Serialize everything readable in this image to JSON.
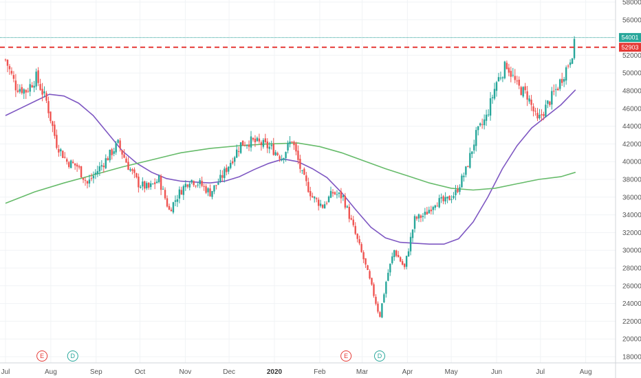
{
  "chart_data": {
    "type": "candlestick",
    "y_axis": {
      "min": 18000,
      "max": 58000,
      "ticks": [
        18000,
        20000,
        22000,
        24000,
        26000,
        28000,
        30000,
        32000,
        34000,
        36000,
        38000,
        40000,
        42000,
        44000,
        46000,
        48000,
        50000,
        52000,
        54000,
        56000,
        58000
      ],
      "side": "right"
    },
    "x_axis": {
      "labels": [
        {
          "text": "Jul",
          "day": 0,
          "bold": false
        },
        {
          "text": "Aug",
          "day": 31,
          "bold": false
        },
        {
          "text": "Sep",
          "day": 62,
          "bold": false
        },
        {
          "text": "Oct",
          "day": 92,
          "bold": false
        },
        {
          "text": "Nov",
          "day": 123,
          "bold": false
        },
        {
          "text": "Dec",
          "day": 153,
          "bold": false
        },
        {
          "text": "2020",
          "day": 184,
          "bold": true
        },
        {
          "text": "Feb",
          "day": 215,
          "bold": false
        },
        {
          "text": "Mar",
          "day": 244,
          "bold": false
        },
        {
          "text": "Apr",
          "day": 275,
          "bold": false
        },
        {
          "text": "May",
          "day": 305,
          "bold": false
        },
        {
          "text": "Jun",
          "day": 336,
          "bold": false
        },
        {
          "text": "Jul",
          "day": 366,
          "bold": false
        },
        {
          "text": "Aug",
          "day": 397,
          "bold": false
        }
      ],
      "day_range": [
        0,
        427
      ]
    },
    "price_levels": {
      "last_price": {
        "value": 54001,
        "label": "54001",
        "color": "#26a69a"
      },
      "resistance": {
        "value": 52903,
        "label": "52903",
        "color": "#e53935"
      }
    },
    "weekly_anchors": [
      [
        0,
        51500
      ],
      [
        7,
        48500
      ],
      [
        14,
        48000
      ],
      [
        21,
        49500
      ],
      [
        28,
        46800
      ],
      [
        35,
        42000
      ],
      [
        42,
        40000
      ],
      [
        49,
        39500
      ],
      [
        56,
        37500
      ],
      [
        63,
        39000
      ],
      [
        70,
        40500
      ],
      [
        77,
        42000
      ],
      [
        84,
        39500
      ],
      [
        91,
        37500
      ],
      [
        98,
        37000
      ],
      [
        105,
        38000
      ],
      [
        112,
        34500
      ],
      [
        119,
        36500
      ],
      [
        126,
        38000
      ],
      [
        133,
        37500
      ],
      [
        140,
        36500
      ],
      [
        147,
        38000
      ],
      [
        154,
        40000
      ],
      [
        161,
        42000
      ],
      [
        168,
        42300
      ],
      [
        175,
        42000
      ],
      [
        182,
        41500
      ],
      [
        189,
        40500
      ],
      [
        196,
        42500
      ],
      [
        203,
        38500
      ],
      [
        210,
        36000
      ],
      [
        217,
        35000
      ],
      [
        224,
        36500
      ],
      [
        231,
        36000
      ],
      [
        238,
        32500
      ],
      [
        245,
        29000
      ],
      [
        252,
        25000
      ],
      [
        256,
        22500
      ],
      [
        261,
        27000
      ],
      [
        266,
        30000
      ],
      [
        273,
        28000
      ],
      [
        280,
        33500
      ],
      [
        287,
        34000
      ],
      [
        294,
        35500
      ],
      [
        301,
        35500
      ],
      [
        308,
        36500
      ],
      [
        315,
        39000
      ],
      [
        322,
        43000
      ],
      [
        329,
        45000
      ],
      [
        336,
        49000
      ],
      [
        343,
        51000
      ],
      [
        350,
        48500
      ],
      [
        357,
        47500
      ],
      [
        364,
        44500
      ],
      [
        371,
        46500
      ],
      [
        378,
        48500
      ],
      [
        385,
        51000
      ],
      [
        390,
        53500
      ]
    ],
    "series": [
      {
        "name": "",
        "color": "#7e57c2",
        "points": [
          [
            0,
            45200
          ],
          [
            10,
            46000
          ],
          [
            20,
            46800
          ],
          [
            30,
            47600
          ],
          [
            40,
            47400
          ],
          [
            50,
            46600
          ],
          [
            60,
            45200
          ],
          [
            70,
            43200
          ],
          [
            80,
            41200
          ],
          [
            90,
            39800
          ],
          [
            100,
            38800
          ],
          [
            110,
            38100
          ],
          [
            120,
            37800
          ],
          [
            130,
            37700
          ],
          [
            140,
            37600
          ],
          [
            150,
            37800
          ],
          [
            160,
            38300
          ],
          [
            170,
            39100
          ],
          [
            180,
            39800
          ],
          [
            190,
            40300
          ],
          [
            200,
            40000
          ],
          [
            210,
            39200
          ],
          [
            220,
            38200
          ],
          [
            230,
            36500
          ],
          [
            240,
            34500
          ],
          [
            250,
            32600
          ],
          [
            260,
            31400
          ],
          [
            270,
            30900
          ],
          [
            280,
            30800
          ],
          [
            290,
            30700
          ],
          [
            300,
            30700
          ],
          [
            310,
            31300
          ],
          [
            320,
            33200
          ],
          [
            330,
            36000
          ],
          [
            340,
            39200
          ],
          [
            350,
            41800
          ],
          [
            360,
            43800
          ],
          [
            370,
            45100
          ],
          [
            380,
            46400
          ],
          [
            390,
            48100
          ]
        ]
      },
      {
        "name": "",
        "color": "#66bb6a",
        "points": [
          [
            0,
            35300
          ],
          [
            20,
            36600
          ],
          [
            40,
            37600
          ],
          [
            60,
            38500
          ],
          [
            80,
            39400
          ],
          [
            100,
            40200
          ],
          [
            120,
            41000
          ],
          [
            140,
            41500
          ],
          [
            160,
            41800
          ],
          [
            180,
            42000
          ],
          [
            200,
            42100
          ],
          [
            215,
            41700
          ],
          [
            230,
            41000
          ],
          [
            245,
            40100
          ],
          [
            260,
            39200
          ],
          [
            275,
            38400
          ],
          [
            290,
            37600
          ],
          [
            305,
            37000
          ],
          [
            320,
            36800
          ],
          [
            335,
            37000
          ],
          [
            350,
            37500
          ],
          [
            365,
            38000
          ],
          [
            380,
            38300
          ],
          [
            390,
            38800
          ]
        ]
      }
    ],
    "events": [
      {
        "label": "E",
        "day": 25,
        "color": "#e53935"
      },
      {
        "label": "D",
        "day": 46,
        "color": "#26a69a"
      },
      {
        "label": "E",
        "day": 233,
        "color": "#e53935"
      },
      {
        "label": "D",
        "day": 256,
        "color": "#26a69a"
      }
    ],
    "colors": {
      "up": "#26a69a",
      "down": "#ef5350",
      "grid": "#f0f3f5",
      "axis_text": "#555555"
    },
    "grid": true,
    "title": "",
    "xlabel": "",
    "ylabel": ""
  }
}
